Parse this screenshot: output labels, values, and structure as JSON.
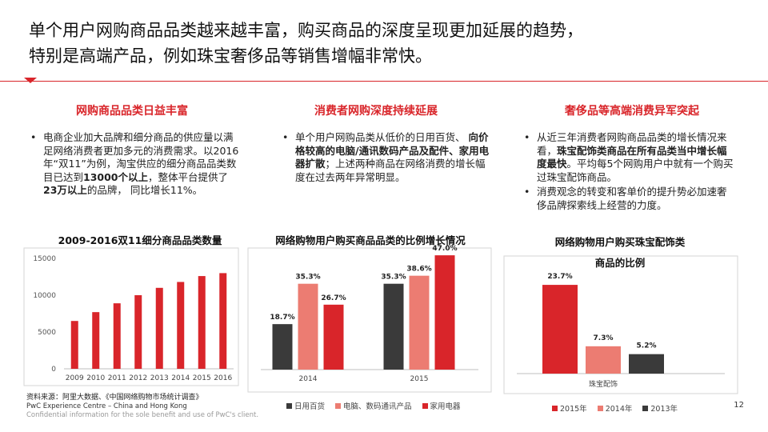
{
  "title": {
    "line1": "单个用户网购商品品类越来越丰富，购买商品的深度呈现更加延展的趋势，",
    "line2": "特别是高端产品，例如珠宝奢侈品等销售增幅非常快。"
  },
  "columns": [
    {
      "heading": "网购商品品类日益丰富",
      "bullets": [
        [
          "电商企业加大品牌和细分商品的供应量以满足网络消费者更加多元的消费需求。以2016年“双11”为例，淘宝供应的细分商品品类数目已达到",
          "13000个以上",
          "，整体平台提供了",
          "23万以上",
          "的品牌， 同比增长11%。"
        ]
      ]
    },
    {
      "heading": "消费者网购深度持续延展",
      "bullets": [
        [
          "单个用户网购品类从低价的日用百货、 ",
          "向价格较高的电脑/通讯数码产品及配件、家用电器扩散",
          "；上述两种商品在网络消费的增长幅度在过去两年异常明显。"
        ]
      ]
    },
    {
      "heading": "奢侈品等高端消费异军突起",
      "bullets": [
        [
          "从近三年消费者网购商品品类的增长情况来看，",
          "珠宝配饰类商品在所有品类当中增长幅度最快",
          "。平均每5个网购用户中就有一个购买过珠宝配饰商品。"
        ],
        [
          "消费观念的转变和客单价的提升势必加速奢侈品牌探索线上经营的力度。"
        ]
      ]
    }
  ],
  "chart_data": [
    {
      "type": "bar",
      "title": "2009-2016双11细分商品品类数量",
      "categories": [
        "2009",
        "2010",
        "2011",
        "2012",
        "2013",
        "2014",
        "2015",
        "2016"
      ],
      "values": [
        6500,
        7700,
        8900,
        10000,
        11000,
        11800,
        12600,
        13000
      ],
      "ylim": [
        0,
        15000
      ],
      "yticks": [
        0,
        5000,
        10000,
        15000
      ],
      "grid": false,
      "color": "#d9252a"
    },
    {
      "type": "bar",
      "title": "网络购物用户购买商品品类的比例增长情况",
      "categories": [
        "2014",
        "2015"
      ],
      "series": [
        {
          "name": "日用百货",
          "values": [
            18.7,
            35.3
          ],
          "labels": [
            "18.7%",
            "35.3%"
          ],
          "color": "#3a3a3a"
        },
        {
          "name": "电脑、数码通讯产品",
          "values": [
            35.3,
            38.6
          ],
          "labels": [
            "35.3%",
            "38.6%"
          ],
          "color": "#ec7c72"
        },
        {
          "name": "家用电器",
          "values": [
            26.7,
            47.0
          ],
          "labels": [
            "26.7%",
            "47.0%"
          ],
          "color": "#d9252a"
        }
      ],
      "ylim": [
        0,
        50
      ],
      "legend": "bottom"
    },
    {
      "type": "bar",
      "title_line1": "网络购物用户购买珠宝配饰类",
      "title_line2": "商品的比例",
      "categories": [
        "珠宝配饰"
      ],
      "series": [
        {
          "name": "2015年",
          "values": [
            23.7
          ],
          "labels": [
            "23.7%"
          ],
          "color": "#d9252a"
        },
        {
          "name": "2014年",
          "values": [
            7.3
          ],
          "labels": [
            "7.3%"
          ],
          "color": "#ec7c72"
        },
        {
          "name": "2013年",
          "values": [
            5.2
          ],
          "labels": [
            "5.2%"
          ],
          "color": "#3a3a3a"
        }
      ],
      "ylim": [
        0,
        25
      ],
      "legend": "bottom"
    }
  ],
  "footer": {
    "source": "资料来源：阿里大数据、《中国网络购物市场统计调查》",
    "line2": "PwC Experience Centre – China and Hong Kong",
    "line3": "Confidential information for the sole benefit and use of PwC's client."
  },
  "page_number": "12"
}
